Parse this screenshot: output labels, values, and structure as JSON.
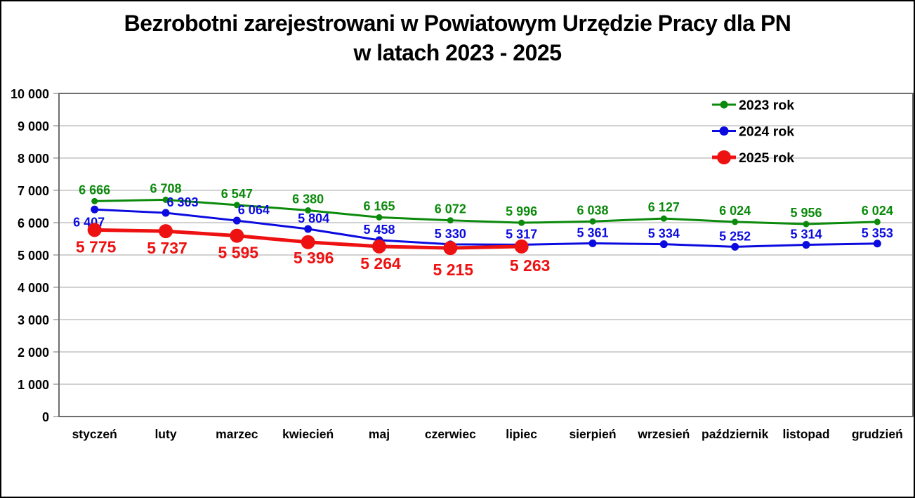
{
  "title": {
    "line1": "Bezrobotni zarejestrowani w Powiatowym Urzędzie Pracy dla PN",
    "line2": "w latach 2023 - 2025"
  },
  "chart_data": {
    "type": "line",
    "title": "Bezrobotni zarejestrowani w Powiatowym Urzędzie Pracy dla PN w latach 2023 - 2025",
    "categories": [
      "styczeń",
      "luty",
      "marzec",
      "kwiecień",
      "maj",
      "czerwiec",
      "lipiec",
      "sierpień",
      "wrzesień",
      "październik",
      "listopad",
      "grudzień"
    ],
    "series": [
      {
        "name": "2023 rok",
        "color": "#0b8a0b",
        "values": [
          6666,
          6708,
          6547,
          6380,
          6165,
          6072,
          5996,
          6038,
          6127,
          6024,
          5956,
          6024
        ],
        "marker_radius": 4.5,
        "line_width": 3,
        "label_size": 18,
        "label_side": "above",
        "label_offset_default": [
          0,
          -10
        ],
        "label_offset_overrides": {}
      },
      {
        "name": "2024 rok",
        "color": "#0b0be0",
        "values": [
          6407,
          6303,
          6064,
          5804,
          5458,
          5330,
          5317,
          5361,
          5334,
          5252,
          5314,
          5353
        ],
        "marker_radius": 5.5,
        "line_width": 3,
        "label_size": 18,
        "label_side": "above",
        "label_offset_default": [
          0,
          -9
        ],
        "label_offset_overrides": {
          "0": [
            -8,
            24
          ],
          "1": [
            24,
            -9
          ],
          "2": [
            24,
            -9
          ],
          "3": [
            8,
            -9
          ]
        }
      },
      {
        "name": "2025 rok",
        "color": "#ee1111",
        "values": [
          5775,
          5737,
          5595,
          5396,
          5264,
          5215,
          5263
        ],
        "marker_radius": 10,
        "line_width": 5,
        "label_size": 23,
        "label_side": "below",
        "label_offset_default": [
          2,
          32
        ],
        "label_offset_overrides": {
          "3": [
            8,
            30
          ],
          "5": [
            4,
            39
          ],
          "6": [
            12,
            35
          ]
        }
      }
    ],
    "ylim": [
      0,
      10000
    ],
    "ytick_step": 1000,
    "ytick_labels": [
      "0",
      "1 000",
      "2 000",
      "3 000",
      "4 000",
      "5 000",
      "6 000",
      "7 000",
      "8 000",
      "9 000",
      "10 000"
    ],
    "grid": "horizontal",
    "legend_position": "top-right-inside",
    "legend_entries": [
      "2023 rok",
      "2024 rok",
      "2025 rok"
    ],
    "value_label_format": "space-thousands",
    "colors": {
      "gridline": "#c3c3c3",
      "plot_frame": "#6e6e6e",
      "tick": "#a0a0a0",
      "axis_text": "#000000",
      "outer_border": "#000000",
      "background": "#ffffff"
    }
  }
}
